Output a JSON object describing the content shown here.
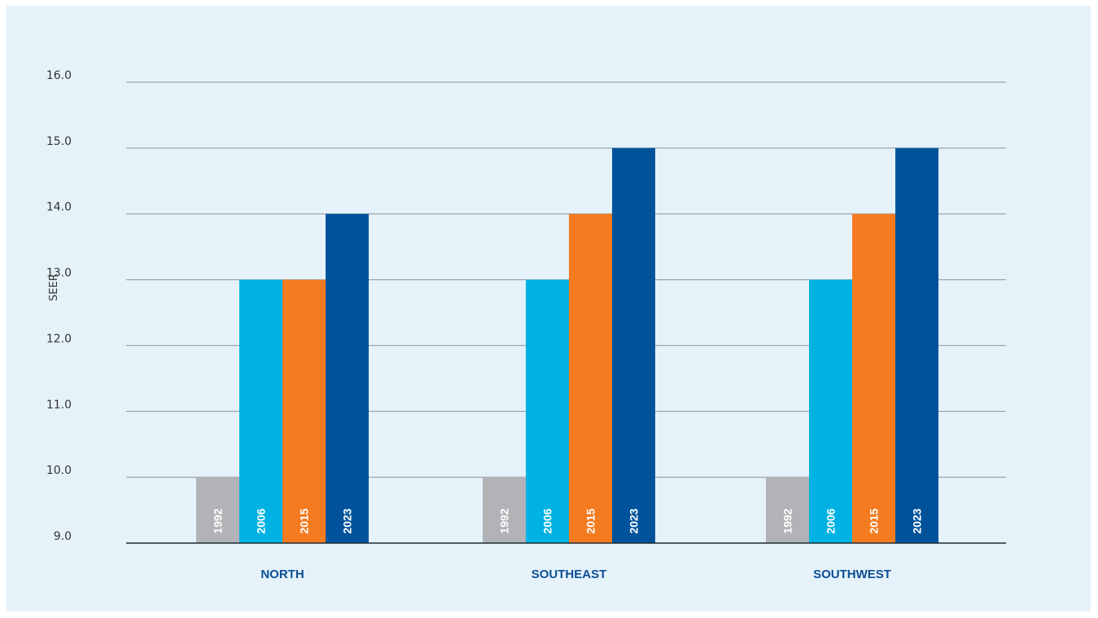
{
  "chart_data": {
    "type": "bar",
    "title": "",
    "xlabel": "",
    "ylabel": "SEER",
    "ylim": [
      9,
      16
    ],
    "yticks": [
      "9.0",
      "10.0",
      "11.0",
      "12.0",
      "13.0",
      "14.0",
      "15.0",
      "16.0"
    ],
    "grid": true,
    "categories": [
      "NORTH",
      "SOUTHEAST",
      "SOUTHWEST"
    ],
    "series": [
      {
        "name": "1992",
        "color": "#b1b3b6",
        "values": [
          10,
          10,
          10
        ]
      },
      {
        "name": "2006",
        "color": "#00b2e3",
        "values": [
          13,
          13,
          13
        ]
      },
      {
        "name": "2015",
        "color": "#f47b20",
        "values": [
          13,
          14,
          14
        ]
      },
      {
        "name": "2023",
        "color": "#00539b",
        "values": [
          14,
          15,
          15
        ]
      }
    ]
  }
}
